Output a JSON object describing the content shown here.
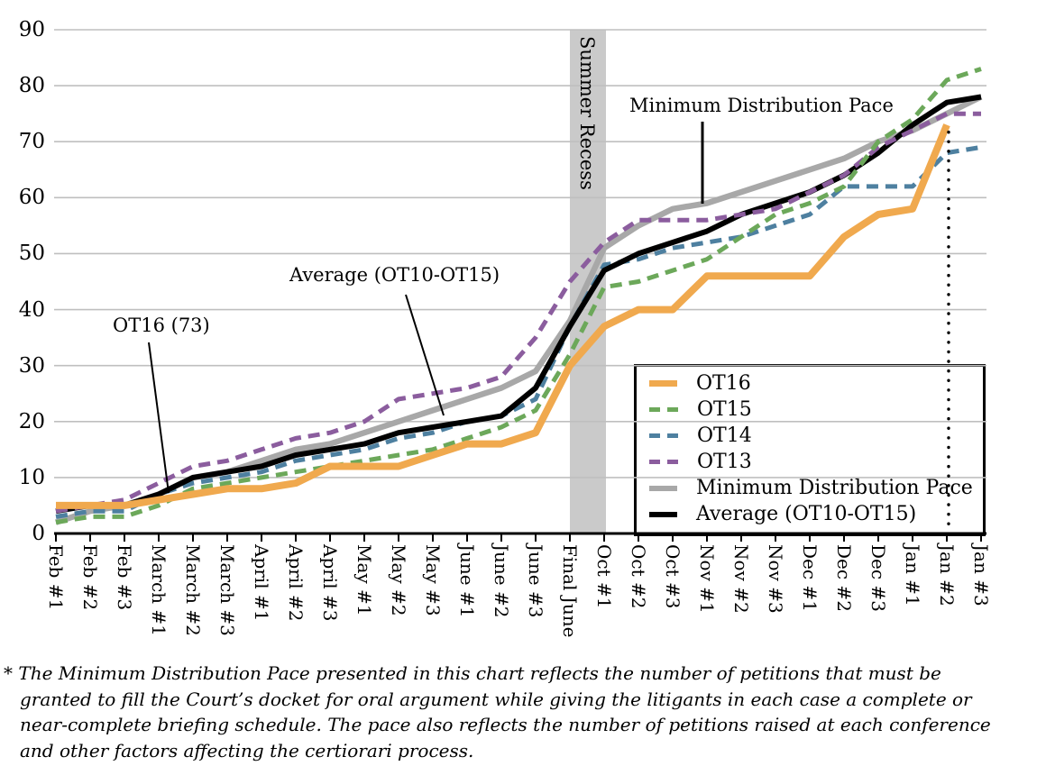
{
  "chart_data": {
    "type": "line",
    "title": "",
    "xlabel": "",
    "ylabel": "",
    "ylim": [
      0,
      90
    ],
    "yticks": [
      90,
      80,
      70,
      60,
      50,
      40,
      30,
      20,
      10,
      0
    ],
    "grid": "horizontal",
    "legend_position": "inside-bottom-right",
    "categories": [
      "Feb #1",
      "Feb #2",
      "Feb #3",
      "March #1",
      "March #2",
      "March #3",
      "April #1",
      "April #2",
      "April #3",
      "May #1",
      "May #2",
      "May #3",
      "June #1",
      "June #2",
      "June #3",
      "Final June",
      "Oct #1",
      "Oct #2",
      "Oct #3",
      "Nov #1",
      "Nov #2",
      "Nov #3",
      "Dec #1",
      "Dec #2",
      "Dec #3",
      "Jan #1",
      "Jan #2",
      "Jan #3"
    ],
    "series": [
      {
        "name": "OT16",
        "color": "#F0A94E",
        "style": "solid",
        "stroke_width": 8,
        "values": [
          5,
          5,
          5,
          6,
          7,
          8,
          8,
          9,
          12,
          12,
          12,
          14,
          16,
          16,
          18,
          30,
          37,
          40,
          40,
          46,
          46,
          46,
          46,
          53,
          57,
          58,
          73,
          null
        ]
      },
      {
        "name": "OT15",
        "color": "#6CA85A",
        "style": "dashed",
        "stroke_width": 5,
        "values": [
          2,
          3,
          3,
          5,
          8,
          9,
          10,
          11,
          12,
          13,
          14,
          15,
          17,
          19,
          22,
          32,
          44,
          45,
          47,
          49,
          53,
          57,
          59,
          62,
          70,
          74,
          81,
          83
        ]
      },
      {
        "name": "OT14",
        "color": "#4E80A0",
        "style": "dashed",
        "stroke_width": 5,
        "values": [
          3,
          4,
          4,
          7,
          9,
          10,
          11,
          13,
          14,
          15,
          17,
          18,
          20,
          21,
          24,
          37,
          48,
          49,
          51,
          52,
          53,
          55,
          57,
          62,
          62,
          62,
          68,
          69
        ]
      },
      {
        "name": "OT13",
        "color": "#8B5D9E",
        "style": "dashed",
        "stroke_width": 5,
        "values": [
          4,
          5,
          6,
          9,
          12,
          13,
          15,
          17,
          18,
          20,
          24,
          25,
          26,
          28,
          35,
          45,
          52,
          56,
          56,
          56,
          57,
          58,
          61,
          64,
          69,
          72,
          75,
          75
        ]
      },
      {
        "name": "Minimum Distribution Pace",
        "color": "#A8A8A8",
        "style": "solid",
        "stroke_width": 6.5,
        "values": [
          2,
          4,
          5,
          7,
          10,
          11,
          13,
          15,
          16,
          18,
          20,
          22,
          24,
          26,
          29,
          38,
          51,
          55,
          58,
          59,
          61,
          63,
          65,
          67,
          70,
          72,
          75,
          78
        ]
      },
      {
        "name": "Average (OT10-OT15)",
        "color": "#000000",
        "style": "solid",
        "stroke_width": 6,
        "values": [
          4,
          5,
          5,
          7,
          10,
          11,
          12,
          14,
          15,
          16,
          18,
          19,
          20,
          21,
          26,
          37,
          47,
          50,
          52,
          54,
          57,
          59,
          61,
          64,
          68,
          73,
          77,
          78
        ]
      }
    ],
    "recess_band": {
      "label": "Summer Recess",
      "from_category": "Final June",
      "to_category": "Oct #1",
      "color": "#CACACA"
    },
    "dotted_marker": {
      "category": "Jan #2",
      "value": 73
    },
    "annotations": [
      {
        "text": "OT16 (73)"
      },
      {
        "text": "Average (OT10-OT15)"
      },
      {
        "text": "Minimum Distribution Pace"
      }
    ],
    "gridline_color": "#BFBFBF",
    "axis_color": "#000000"
  },
  "footnote": {
    "lines": [
      "* The Minimum Distribution Pace presented in this chart reflects the number of petitions that must be",
      "granted to fill the Court’s docket for oral argument while giving the litigants in each case a complete or",
      "near-complete briefing schedule. The pace also reflects the number of petitions raised at each conference",
      "and other factors affecting the certiorari process."
    ]
  }
}
